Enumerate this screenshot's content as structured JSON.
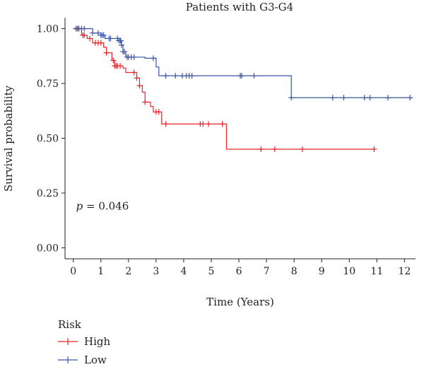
{
  "chart_data": {
    "type": "line",
    "title": "Patients with G3-G4",
    "xlabel": "Time (Years)",
    "ylabel": "Survival probability",
    "xlim": [
      -0.3,
      12.4
    ],
    "ylim": [
      -0.05,
      1.05
    ],
    "x_ticks": [
      0,
      1,
      2,
      3,
      4,
      5,
      6,
      7,
      8,
      9,
      10,
      11,
      12
    ],
    "x_tick_labels": [
      "0",
      "1",
      "2",
      "3",
      "4",
      "5",
      "6",
      "7",
      "8",
      "9",
      "10",
      "11",
      "12"
    ],
    "y_ticks": [
      0,
      0.25,
      0.5,
      0.75,
      1.0
    ],
    "y_tick_labels": [
      "0.00",
      "0.25",
      "0.50",
      "0.75",
      "1.00"
    ],
    "grid": false,
    "annotation": {
      "italic": "p",
      "text": " = 0.046",
      "x": 0.1,
      "y": 0.19
    },
    "legend": {
      "title": "Risk",
      "placement": "bottom-left"
    },
    "series": [
      {
        "name": "High",
        "color": "#e8262a",
        "steps": [
          [
            0,
            1.0
          ],
          [
            0.3,
            0.97
          ],
          [
            0.5,
            0.955
          ],
          [
            0.7,
            0.935
          ],
          [
            1.1,
            0.915
          ],
          [
            1.2,
            0.89
          ],
          [
            1.4,
            0.855
          ],
          [
            1.5,
            0.83
          ],
          [
            1.8,
            0.82
          ],
          [
            1.9,
            0.8
          ],
          [
            2.3,
            0.775
          ],
          [
            2.4,
            0.74
          ],
          [
            2.5,
            0.71
          ],
          [
            2.6,
            0.665
          ],
          [
            2.8,
            0.645
          ],
          [
            2.9,
            0.62
          ],
          [
            3.2,
            0.565
          ],
          [
            5.55,
            0.45
          ],
          [
            10.9,
            0.45
          ]
        ],
        "censor_times": [
          0.15,
          0.2,
          0.35,
          0.4,
          0.6,
          0.8,
          0.9,
          1.0,
          1.2,
          1.45,
          1.5,
          1.55,
          1.6,
          1.7,
          2.2,
          2.3,
          2.4,
          2.6,
          3.0,
          3.1,
          3.35,
          4.6,
          4.7,
          4.9,
          5.4,
          6.8,
          7.3,
          8.3,
          10.9
        ]
      },
      {
        "name": "Low",
        "color": "#3a55a4",
        "steps": [
          [
            0,
            1.0
          ],
          [
            0.7,
            0.98
          ],
          [
            1.0,
            0.97
          ],
          [
            1.15,
            0.955
          ],
          [
            1.65,
            0.945
          ],
          [
            1.75,
            0.925
          ],
          [
            1.8,
            0.895
          ],
          [
            1.9,
            0.87
          ],
          [
            2.6,
            0.865
          ],
          [
            3.0,
            0.825
          ],
          [
            3.1,
            0.785
          ],
          [
            7.9,
            0.685
          ],
          [
            12.3,
            0.685
          ]
        ],
        "censor_times": [
          0.1,
          0.15,
          0.2,
          0.3,
          0.4,
          0.7,
          0.9,
          1.0,
          1.05,
          1.1,
          1.3,
          1.35,
          1.6,
          1.65,
          1.7,
          1.72,
          1.75,
          1.8,
          1.85,
          1.95,
          2.0,
          2.1,
          2.2,
          2.9,
          3.35,
          3.7,
          3.95,
          4.1,
          4.2,
          4.3,
          6.05,
          6.1,
          6.55,
          7.9,
          9.4,
          9.8,
          10.55,
          10.75,
          11.4,
          12.2
        ]
      }
    ]
  }
}
